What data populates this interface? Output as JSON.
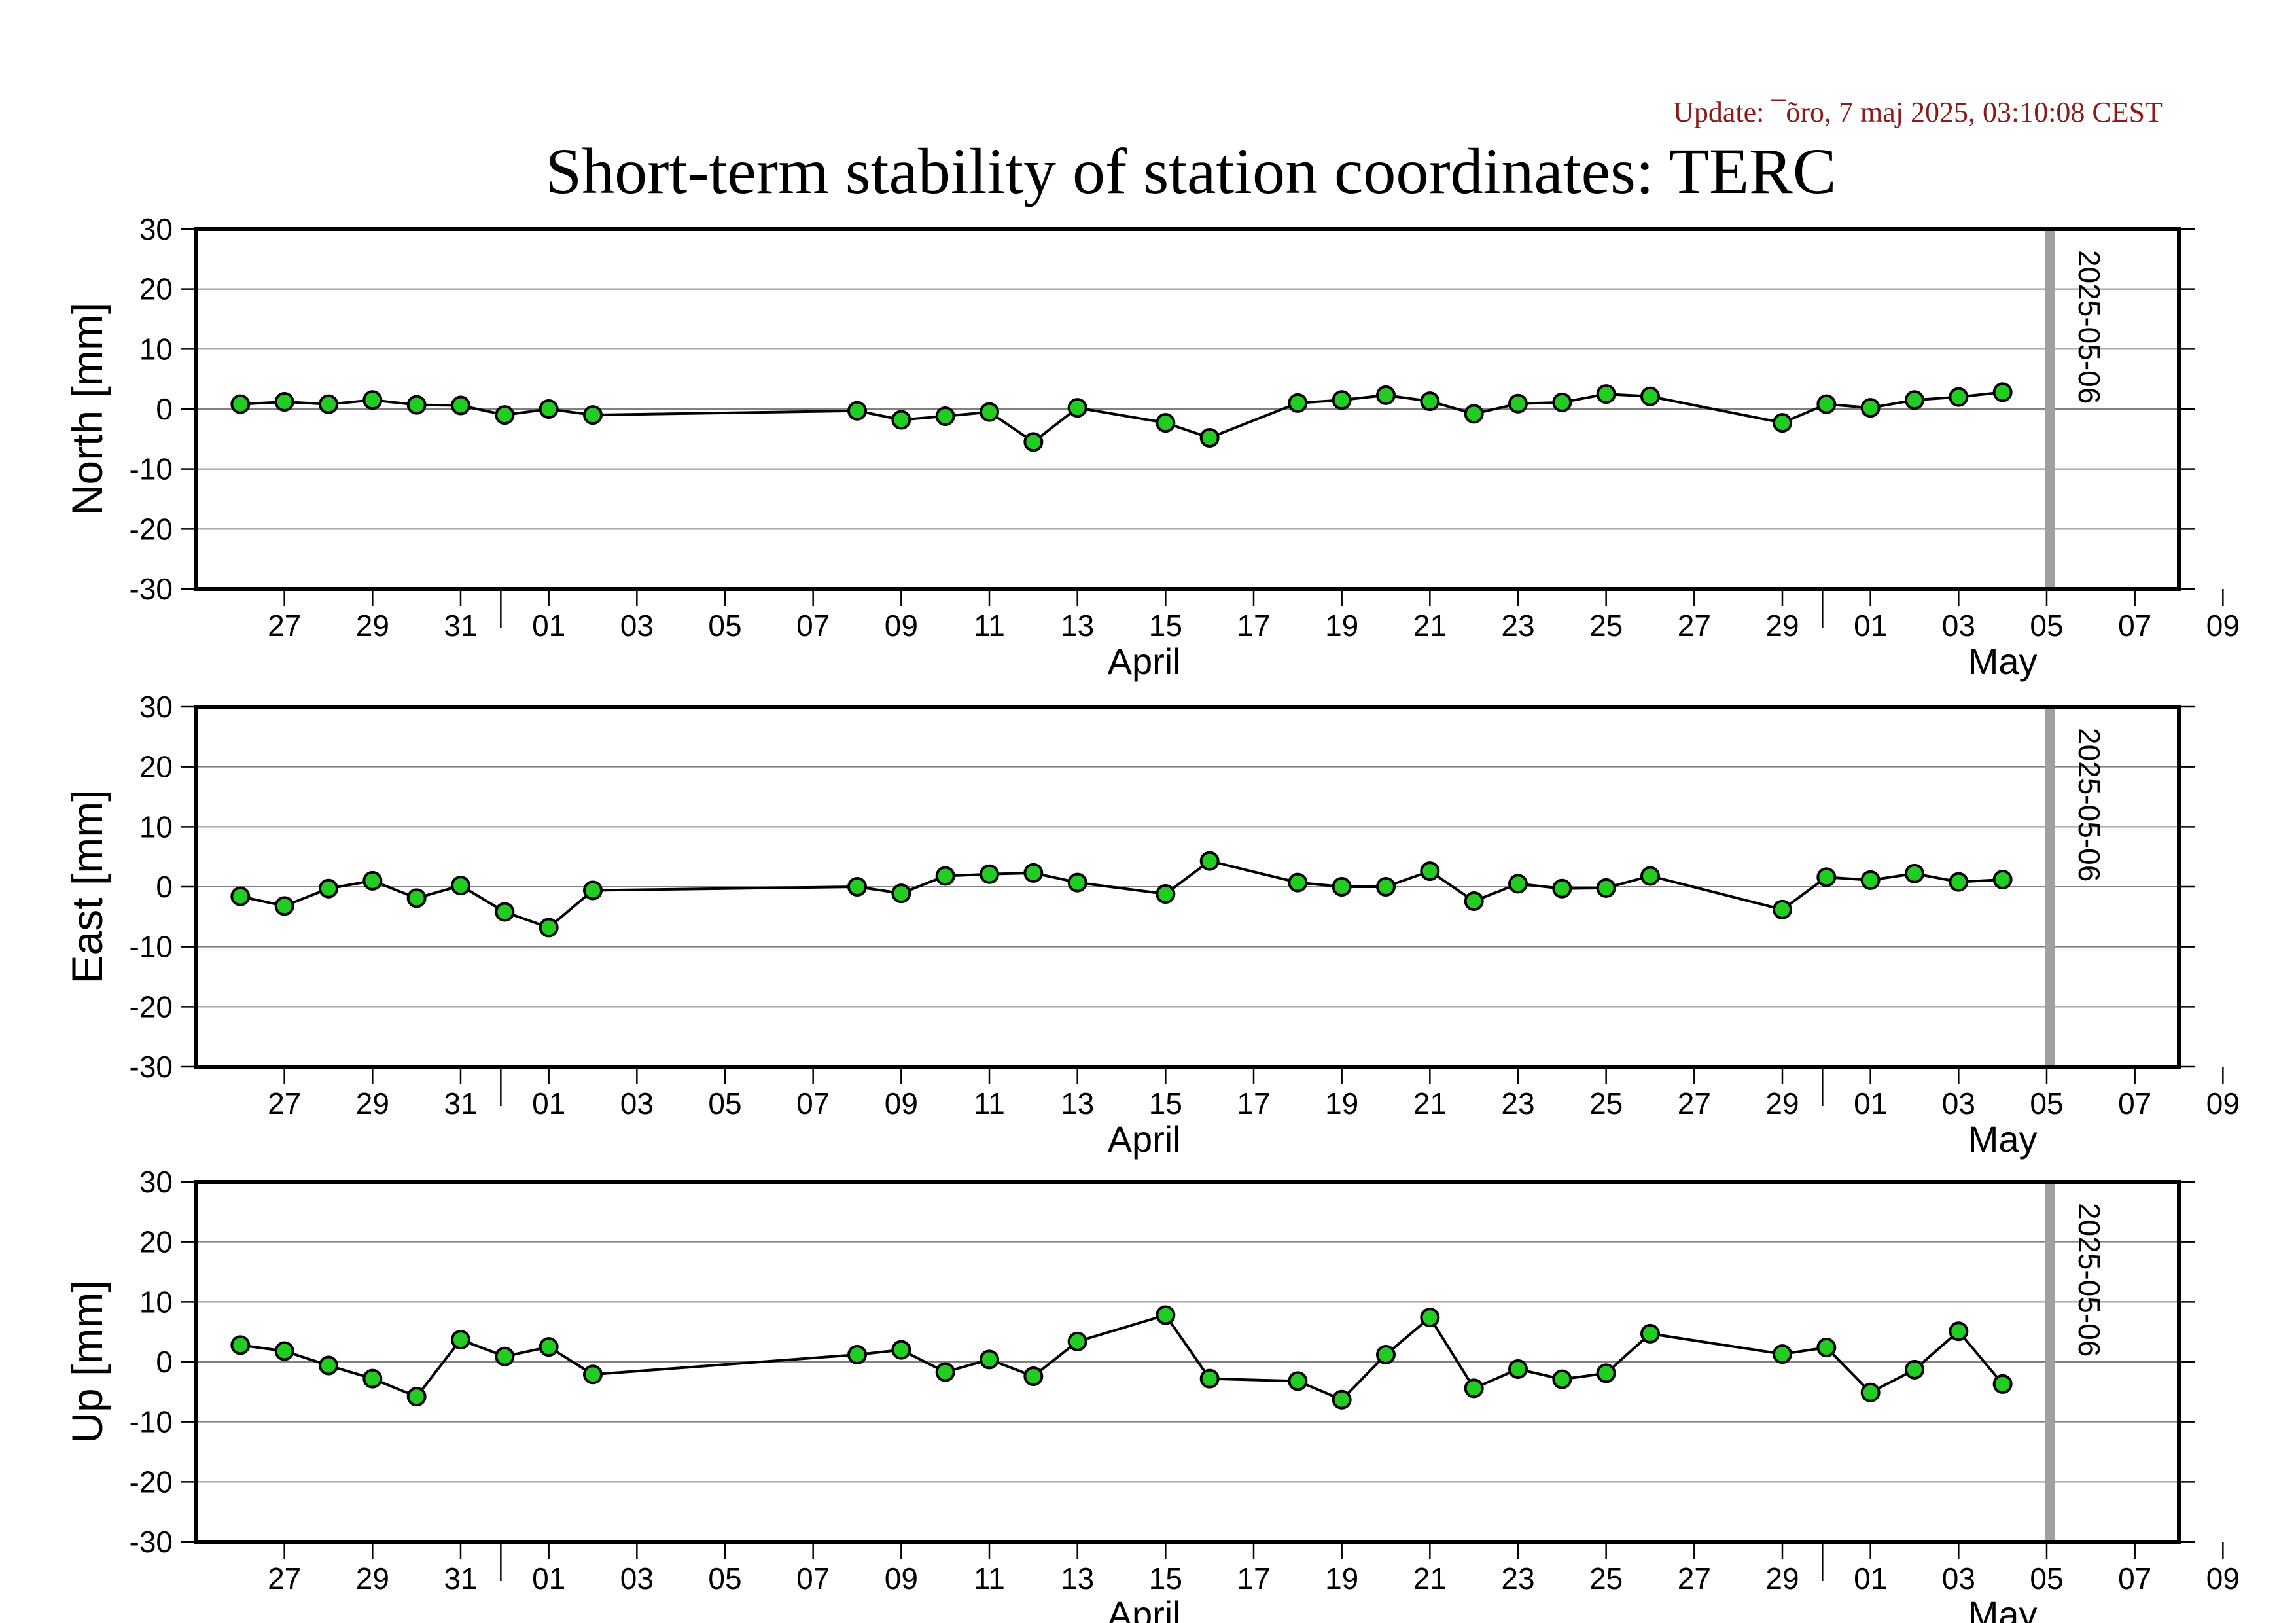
{
  "header": {
    "update_text": "Update: ¯õro, 7 maj 2025, 03:10:08 CEST",
    "title": "Short-term stability of station coordinates: TERC"
  },
  "colors": {
    "point_fill": "#22cc22",
    "point_stroke": "#000000",
    "line": "#000000",
    "grid": "#808080",
    "marker_line": "#a0a0a0",
    "update_text": "#8b1a1a"
  },
  "chart_data": [
    {
      "type": "line",
      "ylabel": "North [mm]",
      "ylim": [
        -30,
        30
      ],
      "yticks": [
        30,
        20,
        10,
        0,
        -10,
        -20,
        -30
      ],
      "xlim": [
        "2025-03-25",
        "2025-05-09"
      ],
      "xtick_labels": [
        "27",
        "29",
        "31",
        "01",
        "03",
        "05",
        "07",
        "09",
        "11",
        "13",
        "15",
        "17",
        "19",
        "21",
        "23",
        "25",
        "27",
        "29",
        "01",
        "03",
        "05",
        "07",
        "09"
      ],
      "month_labels": [
        "April",
        "May"
      ],
      "grid": true,
      "marker_label": "2025-05-06",
      "series": [
        {
          "x": [
            "2025-03-26",
            "2025-03-27",
            "2025-03-28",
            "2025-03-29",
            "2025-03-30",
            "2025-03-31",
            "2025-04-01",
            "2025-04-02",
            "2025-04-03",
            "2025-04-09",
            "2025-04-10",
            "2025-04-11",
            "2025-04-12",
            "2025-04-13",
            "2025-04-14",
            "2025-04-16",
            "2025-04-17",
            "2025-04-19",
            "2025-04-20",
            "2025-04-21",
            "2025-04-22",
            "2025-04-23",
            "2025-04-24",
            "2025-04-25",
            "2025-04-26",
            "2025-04-27",
            "2025-04-30",
            "2025-05-01",
            "2025-05-02",
            "2025-05-03",
            "2025-05-04",
            "2025-05-05"
          ],
          "y": [
            0.8,
            1.2,
            0.8,
            1.5,
            0.7,
            0.6,
            -1.0,
            0.0,
            -1.0,
            -0.3,
            -1.8,
            -1.2,
            -0.5,
            -5.5,
            0.2,
            -2.3,
            -4.8,
            1.0,
            1.5,
            2.3,
            1.3,
            -0.8,
            0.9,
            1.1,
            2.5,
            2.1,
            -2.3,
            0.8,
            0.2,
            1.5,
            2.0,
            2.8
          ]
        }
      ]
    },
    {
      "type": "line",
      "ylabel": "East [mm]",
      "ylim": [
        -30,
        30
      ],
      "yticks": [
        30,
        20,
        10,
        0,
        -10,
        -20,
        -30
      ],
      "xlim": [
        "2025-03-25",
        "2025-05-09"
      ],
      "xtick_labels": [
        "27",
        "29",
        "31",
        "01",
        "03",
        "05",
        "07",
        "09",
        "11",
        "13",
        "15",
        "17",
        "19",
        "21",
        "23",
        "25",
        "27",
        "29",
        "01",
        "03",
        "05",
        "07",
        "09"
      ],
      "month_labels": [
        "April",
        "May"
      ],
      "grid": true,
      "marker_label": "2025-05-06",
      "series": [
        {
          "x": [
            "2025-03-26",
            "2025-03-27",
            "2025-03-28",
            "2025-03-29",
            "2025-03-30",
            "2025-03-31",
            "2025-04-01",
            "2025-04-02",
            "2025-04-03",
            "2025-04-09",
            "2025-04-10",
            "2025-04-11",
            "2025-04-12",
            "2025-04-13",
            "2025-04-14",
            "2025-04-16",
            "2025-04-17",
            "2025-04-19",
            "2025-04-20",
            "2025-04-21",
            "2025-04-22",
            "2025-04-23",
            "2025-04-24",
            "2025-04-25",
            "2025-04-26",
            "2025-04-27",
            "2025-04-30",
            "2025-05-01",
            "2025-05-02",
            "2025-05-03",
            "2025-05-04",
            "2025-05-05"
          ],
          "y": [
            -1.6,
            -3.2,
            -0.3,
            1.0,
            -1.9,
            0.2,
            -4.2,
            -6.8,
            -0.6,
            0.0,
            -1.1,
            1.8,
            2.1,
            2.3,
            0.7,
            -1.2,
            4.3,
            0.7,
            0.0,
            0.0,
            2.6,
            -2.4,
            0.5,
            -0.3,
            -0.2,
            1.8,
            -3.8,
            1.6,
            1.1,
            2.2,
            0.8,
            1.2
          ]
        }
      ]
    },
    {
      "type": "line",
      "ylabel": "Up [mm]",
      "ylim": [
        -30,
        30
      ],
      "yticks": [
        30,
        20,
        10,
        0,
        -10,
        -20,
        -30
      ],
      "xlim": [
        "2025-03-25",
        "2025-05-09"
      ],
      "xtick_labels": [
        "27",
        "29",
        "31",
        "01",
        "03",
        "05",
        "07",
        "09",
        "11",
        "13",
        "15",
        "17",
        "19",
        "21",
        "23",
        "25",
        "27",
        "29",
        "01",
        "03",
        "05",
        "07",
        "09"
      ],
      "month_labels": [
        "April",
        "May"
      ],
      "grid": true,
      "marker_label": "2025-05-06",
      "series": [
        {
          "x": [
            "2025-03-26",
            "2025-03-27",
            "2025-03-28",
            "2025-03-29",
            "2025-03-30",
            "2025-03-31",
            "2025-04-01",
            "2025-04-02",
            "2025-04-03",
            "2025-04-09",
            "2025-04-10",
            "2025-04-11",
            "2025-04-12",
            "2025-04-13",
            "2025-04-14",
            "2025-04-16",
            "2025-04-17",
            "2025-04-19",
            "2025-04-20",
            "2025-04-21",
            "2025-04-22",
            "2025-04-23",
            "2025-04-24",
            "2025-04-25",
            "2025-04-26",
            "2025-04-27",
            "2025-04-30",
            "2025-05-01",
            "2025-05-02",
            "2025-05-03",
            "2025-05-04",
            "2025-05-05"
          ],
          "y": [
            2.8,
            1.8,
            -0.6,
            -2.8,
            -5.8,
            3.7,
            0.9,
            2.5,
            -2.1,
            1.2,
            2.0,
            -1.7,
            0.4,
            -2.4,
            3.4,
            7.8,
            -2.8,
            -3.2,
            -6.3,
            1.2,
            7.4,
            -4.4,
            -1.2,
            -2.9,
            -1.9,
            4.7,
            1.3,
            2.4,
            -5.1,
            -1.3,
            5.1,
            -3.7
          ]
        }
      ]
    }
  ]
}
